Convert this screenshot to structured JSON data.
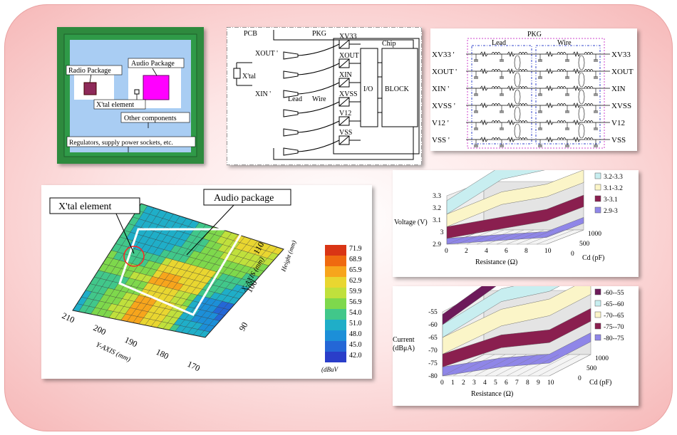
{
  "board": {
    "radio_package": "Radio Package",
    "audio_package": "Audio Package",
    "xtal_element": "X'tal element",
    "other_components": "Other components",
    "regulators": "Regulators, supply power sockets, etc."
  },
  "circuit": {
    "pcb": "PCB",
    "pkg": "PKG",
    "chip": "Chip",
    "xout_left": "XOUT '",
    "xin_left": "XIN '",
    "xtal": "X'tal",
    "lead": "Lead",
    "wire": "Wire",
    "io": "I/O",
    "block": "BLOCK",
    "pins": [
      "XV33",
      "XOUT",
      "XIN",
      "XVSS",
      "V12",
      "VSS"
    ]
  },
  "network": {
    "title": "PKG",
    "lead": "Lead",
    "wire": "Wire",
    "left_labels": [
      "XV33 '",
      "XOUT '",
      "XIN '",
      "XVSS '",
      "V12 '",
      "VSS '"
    ],
    "right_labels": [
      "XV33",
      "XOUT",
      "XIN",
      "XVSS",
      "V12",
      "VSS"
    ]
  },
  "heatmap": {
    "callout_xtal": "X'tal element",
    "callout_audio": "Audio package",
    "unit": "(dBuV",
    "legend_values": [
      "71.9",
      "68.9",
      "65.9",
      "62.9",
      "59.9",
      "56.9",
      "54.0",
      "51.0",
      "48.0",
      "45.0",
      "42.0"
    ],
    "legend_colors": [
      "#d93515",
      "#ef6a10",
      "#f7a51c",
      "#e9d630",
      "#c0e03c",
      "#7ed84c",
      "#41c78a",
      "#1faec8",
      "#1c8fd8",
      "#2467d6",
      "#2a3ec9"
    ],
    "y_ticks": [
      "210",
      "200",
      "190",
      "180",
      "170"
    ],
    "y_axis_label": "Y-AXIS (mm)",
    "x_ticks": [
      "90",
      "100",
      "110"
    ],
    "x_axis_label": "X-AXIS (mm)",
    "z_axis_label": "Height (mm)"
  },
  "chart_data": [
    {
      "type": "surface",
      "zlabel": "Voltage (V)",
      "xlabel": "Resistance (Ω)",
      "ylabel": "Cd (pF)",
      "x_ticks": [
        "0",
        "2",
        "4",
        "6",
        "8",
        "10"
      ],
      "z_ticks": [
        "3.3",
        "3.2",
        "3.1",
        "3",
        "2.9"
      ],
      "y_ticks": [
        "1000",
        "500",
        "0"
      ],
      "legend": [
        "3.2-3.3",
        "3.1-3.2",
        "3-3.1",
        "2.9-3"
      ],
      "legend_colors": [
        "#c8eef0",
        "#fbf5c8",
        "#8a1f4f",
        "#8f86e8"
      ]
    },
    {
      "type": "surface",
      "zlabel": "Current",
      "zlabel2": "(dBμA)",
      "xlabel": "Resistance (Ω)",
      "ylabel": "Cd (pF)",
      "x_ticks": [
        "0",
        "1",
        "2",
        "3",
        "4",
        "5",
        "6",
        "7",
        "8",
        "9",
        "10"
      ],
      "z_ticks": [
        "-55",
        "-60",
        "-65",
        "-70",
        "-75",
        "-80"
      ],
      "y_ticks": [
        "1000",
        "500",
        "0"
      ],
      "legend": [
        "-60--55",
        "-65--60",
        "-70--65",
        "-75--70",
        "-80--75"
      ],
      "legend_colors": [
        "#6d1a5a",
        "#c8eef0",
        "#fbf5c8",
        "#8a1f4f",
        "#8f86e8"
      ]
    }
  ]
}
